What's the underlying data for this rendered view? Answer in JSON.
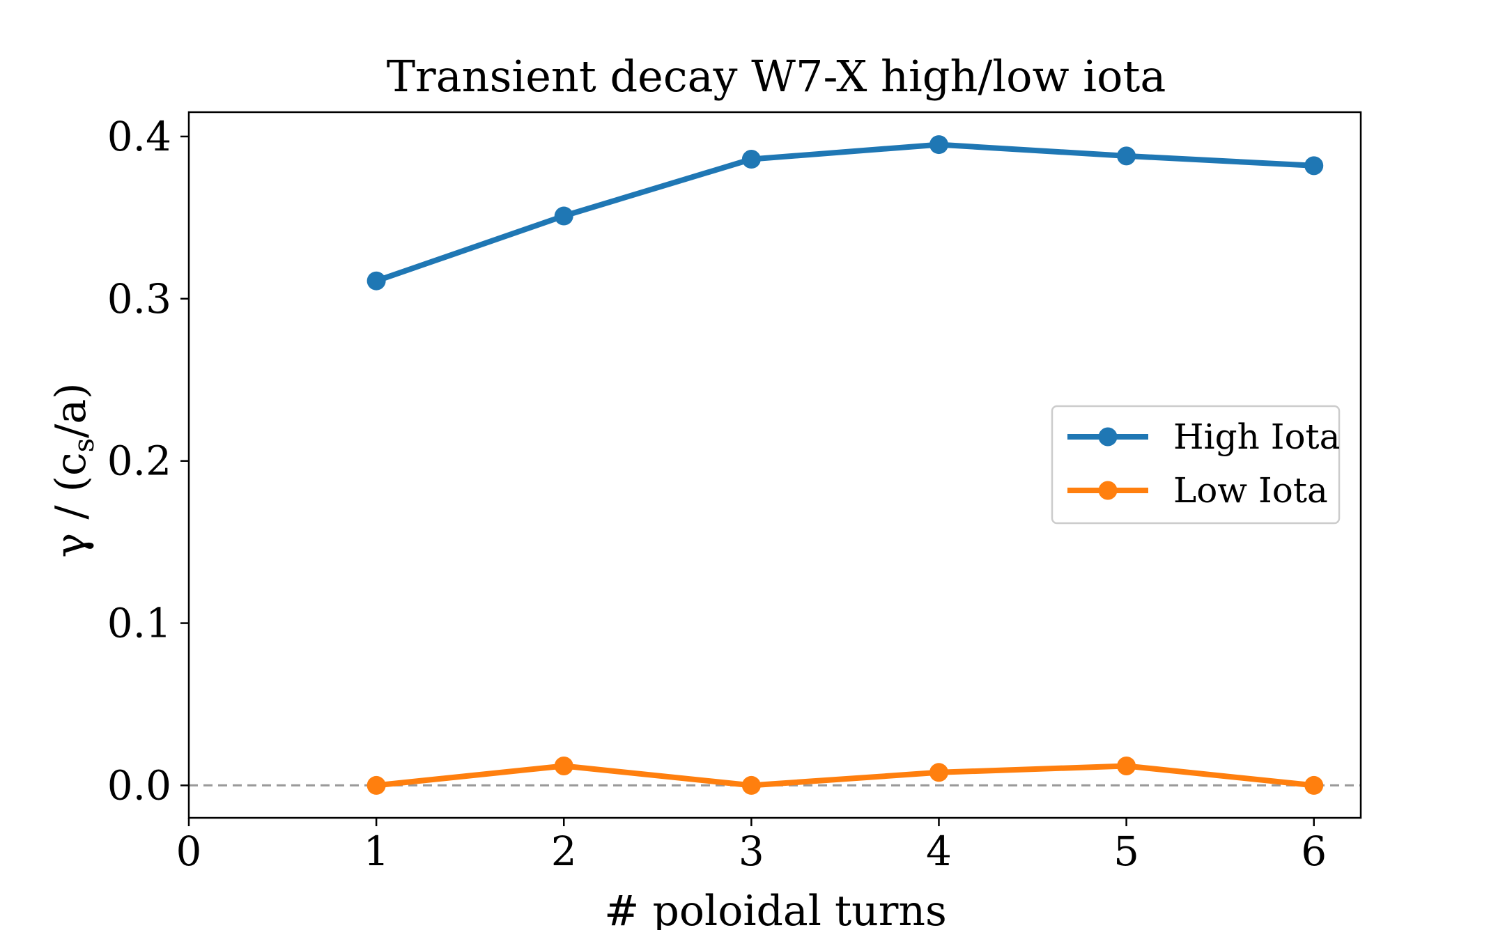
{
  "chart_data": {
    "type": "line",
    "title": "Transient decay W7-X high/low iota",
    "xlabel": "# poloidal turns",
    "ylabel": "γ / (c_s/a)",
    "x": [
      1,
      2,
      3,
      4,
      5,
      6
    ],
    "xlim": [
      0,
      6.25
    ],
    "ylim": [
      -0.02,
      0.415
    ],
    "xticks": [
      0,
      1,
      2,
      3,
      4,
      5,
      6
    ],
    "xtick_labels": [
      "0",
      "1",
      "2",
      "3",
      "4",
      "5",
      "6"
    ],
    "yticks": [
      0.0,
      0.1,
      0.2,
      0.3,
      0.4
    ],
    "ytick_labels": [
      "0.0",
      "0.1",
      "0.2",
      "0.3",
      "0.4"
    ],
    "grid": false,
    "legend_position": "center-right",
    "reference_line": {
      "y": 0,
      "style": "dashed",
      "color": "#999999"
    },
    "series": [
      {
        "name": "High Iota",
        "color": "#1f77b4",
        "values": [
          0.311,
          0.351,
          0.386,
          0.395,
          0.388,
          0.382
        ]
      },
      {
        "name": "Low Iota",
        "color": "#ff7f0e",
        "values": [
          0.0,
          0.012,
          0.0,
          0.008,
          0.012,
          0.0
        ]
      }
    ]
  }
}
